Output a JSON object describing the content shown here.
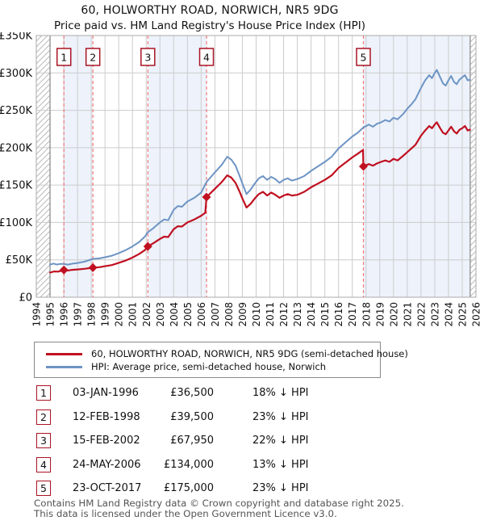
{
  "title": "60, HOLWORTHY ROAD, NORWICH, NR5 9DG",
  "subtitle": "Price paid vs. HM Land Registry's House Price Index (HPI)",
  "colors": {
    "price_paid_line": "#c01020",
    "hpi_line": "#6d94c4",
    "sale_dash_line": "#f27979",
    "band_fill": "#edf2fb",
    "gridline": "#cccccc",
    "plot_border": "#aaaaaa",
    "hatch_line": "#bbbbbb",
    "badge_border": "#a81424",
    "footer_text": "#555555"
  },
  "legend": {
    "items": [
      {
        "label": "60, HOLWORTHY ROAD, NORWICH, NR5 9DG (semi-detached house)",
        "color": "#c01020"
      },
      {
        "label": "HPI: Average price, semi-detached house, Norwich",
        "color": "#6d94c4"
      }
    ]
  },
  "table": {
    "rows": [
      {
        "num": "1",
        "date": "03-JAN-1996",
        "price": "£36,500",
        "delta": "18% ↓ HPI"
      },
      {
        "num": "2",
        "date": "12-FEB-1998",
        "price": "£39,500",
        "delta": "23% ↓ HPI"
      },
      {
        "num": "3",
        "date": "15-FEB-2002",
        "price": "£67,950",
        "delta": "22% ↓ HPI"
      },
      {
        "num": "4",
        "date": "24-MAY-2006",
        "price": "£134,000",
        "delta": "13% ↓ HPI"
      },
      {
        "num": "5",
        "date": "23-OCT-2017",
        "price": "£175,000",
        "delta": "23% ↓ HPI"
      }
    ]
  },
  "footer": {
    "line1": "Contains HM Land Registry data © Crown copyright and database right 2025.",
    "line2": "This data is licensed under the Open Government Licence v3.0."
  },
  "chart_data": {
    "type": "line",
    "x_range": [
      1994,
      2026
    ],
    "y_range": [
      0,
      350
    ],
    "grid": true,
    "legend_position": "below",
    "y_ticks": [
      [
        0,
        "£0"
      ],
      [
        50,
        "£50K"
      ],
      [
        100,
        "£100K"
      ],
      [
        150,
        "£150K"
      ],
      [
        200,
        "£200K"
      ],
      [
        250,
        "£250K"
      ],
      [
        300,
        "£300K"
      ],
      [
        350,
        "£350K"
      ]
    ],
    "x_ticks": [
      1994,
      1995,
      1996,
      1997,
      1998,
      1999,
      2000,
      2001,
      2002,
      2003,
      2004,
      2005,
      2006,
      2007,
      2008,
      2009,
      2010,
      2011,
      2012,
      2013,
      2014,
      2015,
      2016,
      2017,
      2018,
      2019,
      2020,
      2021,
      2022,
      2023,
      2024,
      2025,
      2026
    ],
    "hatch_regions": [
      [
        1994,
        1995.0
      ],
      [
        2025.58,
        2026.0
      ]
    ],
    "bands": [
      [
        1996.01,
        1998.12
      ],
      [
        2002.12,
        2006.39
      ],
      [
        2017.81,
        2025.58
      ]
    ],
    "sales": [
      {
        "n": "1",
        "x": 1996.01,
        "value": 36.5
      },
      {
        "n": "2",
        "x": 1998.12,
        "value": 39.5
      },
      {
        "n": "3",
        "x": 2002.12,
        "value": 67.95
      },
      {
        "n": "4",
        "x": 2006.39,
        "value": 134.0
      },
      {
        "n": "5",
        "x": 2017.81,
        "value": 175.0
      }
    ],
    "series": [
      {
        "name": "price_paid",
        "color": "#c01020",
        "width": 2.2,
        "points": [
          [
            1995.0,
            33
          ],
          [
            1995.3,
            34.5
          ],
          [
            1995.6,
            34.2
          ],
          [
            1996.01,
            36.5
          ],
          [
            1996.3,
            35.8
          ],
          [
            1996.6,
            36.6
          ],
          [
            1997.0,
            37.2
          ],
          [
            1997.5,
            38.0
          ],
          [
            1998.12,
            39.5
          ],
          [
            1998.6,
            40.2
          ],
          [
            1999.0,
            41.5
          ],
          [
            1999.5,
            43.0
          ],
          [
            2000.0,
            46.0
          ],
          [
            2000.5,
            49.0
          ],
          [
            2001.0,
            53.0
          ],
          [
            2001.5,
            58.0
          ],
          [
            2001.9,
            63.0
          ],
          [
            2002.12,
            67.95
          ],
          [
            2002.5,
            72.0
          ],
          [
            2003.0,
            78.0
          ],
          [
            2003.3,
            81.0
          ],
          [
            2003.6,
            80.5
          ],
          [
            2004.0,
            91.0
          ],
          [
            2004.3,
            95.0
          ],
          [
            2004.6,
            94.5
          ],
          [
            2005.0,
            100.0
          ],
          [
            2005.5,
            104.0
          ],
          [
            2006.0,
            109.0
          ],
          [
            2006.3,
            113.0
          ],
          [
            2006.39,
            134.0
          ],
          [
            2007.0,
            145.0
          ],
          [
            2007.5,
            154.0
          ],
          [
            2007.9,
            163.0
          ],
          [
            2008.2,
            160.0
          ],
          [
            2008.5,
            153.0
          ],
          [
            2008.8,
            141.0
          ],
          [
            2009.0,
            132.0
          ],
          [
            2009.3,
            120.0
          ],
          [
            2009.6,
            125.0
          ],
          [
            2009.9,
            132.0
          ],
          [
            2010.2,
            138.0
          ],
          [
            2010.5,
            141.0
          ],
          [
            2010.8,
            136.0
          ],
          [
            2011.1,
            140.0
          ],
          [
            2011.4,
            137.0
          ],
          [
            2011.7,
            133.0
          ],
          [
            2012.0,
            136.0
          ],
          [
            2012.3,
            138.0
          ],
          [
            2012.6,
            136.0
          ],
          [
            2013.0,
            137.0
          ],
          [
            2013.5,
            141.0
          ],
          [
            2014.0,
            147.0
          ],
          [
            2014.5,
            152.0
          ],
          [
            2015.0,
            157.0
          ],
          [
            2015.5,
            163.0
          ],
          [
            2016.0,
            173.0
          ],
          [
            2016.5,
            180.0
          ],
          [
            2017.0,
            187.0
          ],
          [
            2017.4,
            192.0
          ],
          [
            2017.78,
            197.0
          ],
          [
            2017.81,
            175.0
          ],
          [
            2018.2,
            178.0
          ],
          [
            2018.5,
            176.0
          ],
          [
            2018.8,
            179.0
          ],
          [
            2019.1,
            181.0
          ],
          [
            2019.4,
            183.0
          ],
          [
            2019.7,
            181.0
          ],
          [
            2020.0,
            185.0
          ],
          [
            2020.3,
            183.0
          ],
          [
            2020.7,
            189.0
          ],
          [
            2021.0,
            194.0
          ],
          [
            2021.3,
            199.0
          ],
          [
            2021.6,
            204.0
          ],
          [
            2022.0,
            216.0
          ],
          [
            2022.3,
            223.0
          ],
          [
            2022.6,
            229.0
          ],
          [
            2022.8,
            226.0
          ],
          [
            2023.0,
            231.0
          ],
          [
            2023.15,
            234.0
          ],
          [
            2023.4,
            226.0
          ],
          [
            2023.6,
            220.0
          ],
          [
            2023.8,
            218.0
          ],
          [
            2024.0,
            223.0
          ],
          [
            2024.2,
            228.0
          ],
          [
            2024.4,
            222.0
          ],
          [
            2024.6,
            219.0
          ],
          [
            2024.8,
            224.0
          ],
          [
            2025.0,
            226.0
          ],
          [
            2025.2,
            229.0
          ],
          [
            2025.4,
            223.0
          ],
          [
            2025.58,
            224.0
          ]
        ]
      },
      {
        "name": "hpi",
        "color": "#6d94c4",
        "width": 2,
        "points": [
          [
            1995.0,
            43.5
          ],
          [
            1995.25,
            45.0
          ],
          [
            1995.5,
            43.8
          ],
          [
            1995.75,
            44.6
          ],
          [
            1996.01,
            44.5
          ],
          [
            1996.3,
            43.6
          ],
          [
            1996.6,
            44.8
          ],
          [
            1997.0,
            45.8
          ],
          [
            1997.5,
            47.5
          ],
          [
            1998.12,
            51.3
          ],
          [
            1998.6,
            52.0
          ],
          [
            1999.0,
            53.5
          ],
          [
            1999.5,
            55.5
          ],
          [
            2000.0,
            59.0
          ],
          [
            2000.5,
            63.0
          ],
          [
            2001.0,
            68.0
          ],
          [
            2001.5,
            74.0
          ],
          [
            2001.9,
            81.0
          ],
          [
            2002.12,
            87.1
          ],
          [
            2002.5,
            92.0
          ],
          [
            2003.0,
            100.0
          ],
          [
            2003.3,
            104.0
          ],
          [
            2003.6,
            103.0
          ],
          [
            2004.0,
            117.0
          ],
          [
            2004.3,
            122.0
          ],
          [
            2004.6,
            121.0
          ],
          [
            2005.0,
            128.0
          ],
          [
            2005.5,
            133.0
          ],
          [
            2006.0,
            140.0
          ],
          [
            2006.39,
            154.0
          ],
          [
            2007.0,
            167.0
          ],
          [
            2007.5,
            177.0
          ],
          [
            2007.9,
            188.0
          ],
          [
            2008.2,
            184.0
          ],
          [
            2008.5,
            176.0
          ],
          [
            2008.8,
            162.0
          ],
          [
            2009.0,
            152.0
          ],
          [
            2009.3,
            138.0
          ],
          [
            2009.6,
            144.0
          ],
          [
            2009.9,
            152.0
          ],
          [
            2010.2,
            159.0
          ],
          [
            2010.5,
            162.0
          ],
          [
            2010.8,
            157.0
          ],
          [
            2011.1,
            161.0
          ],
          [
            2011.4,
            158.0
          ],
          [
            2011.7,
            153.0
          ],
          [
            2012.0,
            157.0
          ],
          [
            2012.3,
            159.0
          ],
          [
            2012.6,
            156.0
          ],
          [
            2013.0,
            158.0
          ],
          [
            2013.5,
            162.0
          ],
          [
            2014.0,
            169.0
          ],
          [
            2014.5,
            175.0
          ],
          [
            2015.0,
            181.0
          ],
          [
            2015.5,
            188.0
          ],
          [
            2016.0,
            199.0
          ],
          [
            2016.5,
            207.0
          ],
          [
            2017.0,
            215.0
          ],
          [
            2017.4,
            220.0
          ],
          [
            2017.81,
            227.0
          ],
          [
            2018.2,
            231.0
          ],
          [
            2018.5,
            228.0
          ],
          [
            2018.8,
            232.0
          ],
          [
            2019.1,
            234.0
          ],
          [
            2019.4,
            237.0
          ],
          [
            2019.7,
            235.0
          ],
          [
            2020.0,
            240.0
          ],
          [
            2020.3,
            238.0
          ],
          [
            2020.7,
            245.0
          ],
          [
            2021.0,
            252.0
          ],
          [
            2021.3,
            258.0
          ],
          [
            2021.6,
            265.0
          ],
          [
            2022.0,
            280.0
          ],
          [
            2022.3,
            290.0
          ],
          [
            2022.6,
            297.0
          ],
          [
            2022.8,
            293.0
          ],
          [
            2023.0,
            300.0
          ],
          [
            2023.15,
            304.0
          ],
          [
            2023.4,
            294.0
          ],
          [
            2023.6,
            286.0
          ],
          [
            2023.8,
            283.0
          ],
          [
            2024.0,
            290.0
          ],
          [
            2024.2,
            296.0
          ],
          [
            2024.4,
            288.0
          ],
          [
            2024.6,
            285.0
          ],
          [
            2024.8,
            291.0
          ],
          [
            2025.0,
            294.0
          ],
          [
            2025.2,
            297.0
          ],
          [
            2025.4,
            290.0
          ],
          [
            2025.58,
            291.0
          ]
        ]
      }
    ]
  }
}
